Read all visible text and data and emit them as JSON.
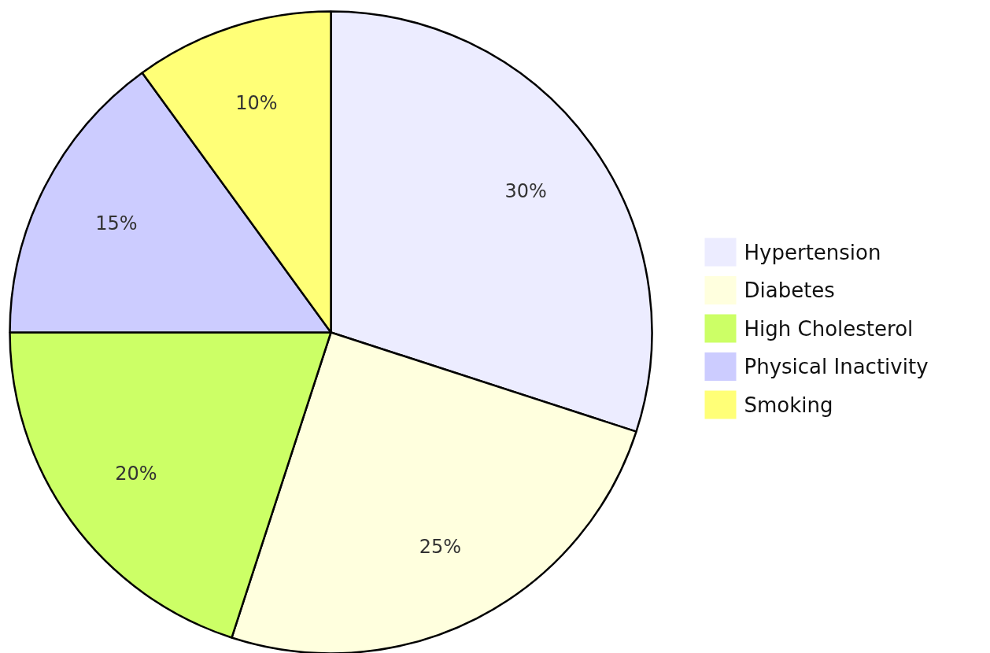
{
  "chart_data": {
    "type": "pie",
    "categories": [
      "Hypertension",
      "Diabetes",
      "High Cholesterol",
      "Physical Inactivity",
      "Smoking"
    ],
    "values": [
      30,
      25,
      20,
      15,
      10
    ],
    "colors": [
      "#ececff",
      "#ffffde",
      "#ccff66",
      "#ccccff",
      "#ffff77"
    ],
    "value_labels": [
      "30%",
      "25%",
      "20%",
      "15%",
      "10%"
    ],
    "legend": "right"
  }
}
